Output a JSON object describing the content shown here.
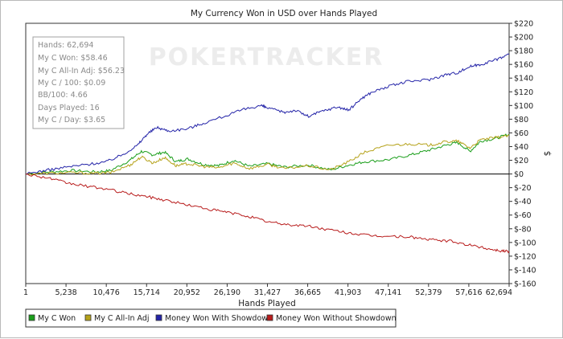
{
  "chart_data": {
    "type": "line",
    "title": "My Currency Won in USD over Hands Played",
    "xlabel": "Hands Played",
    "ylabel": "$",
    "xlim": [
      1,
      62694
    ],
    "ylim": [
      -160,
      220
    ],
    "x_ticks": [
      "1",
      "5,238",
      "10,476",
      "15,714",
      "20,952",
      "26,190",
      "31,427",
      "36,665",
      "41,903",
      "47,141",
      "52,379",
      "57,616",
      "62,694"
    ],
    "y_ticks": [
      220,
      200,
      180,
      160,
      140,
      120,
      100,
      80,
      60,
      40,
      20,
      0,
      -20,
      -40,
      -60,
      -80,
      -100,
      -120,
      -140,
      -160
    ],
    "y_tick_labels": [
      "$220",
      "$200",
      "$180",
      "$160",
      "$140",
      "$120",
      "$100",
      "$80",
      "$60",
      "$40",
      "$20",
      "$0",
      "$-20",
      "$-40",
      "$-60",
      "$-80",
      "$-100",
      "$-120",
      "$-140",
      "$-160"
    ],
    "grid": false,
    "legend_position": "bottom",
    "series": [
      {
        "name": "My C Won",
        "color": "#1a9e1a",
        "points": [
          [
            1,
            0
          ],
          [
            3000,
            3
          ],
          [
            6000,
            5
          ],
          [
            9000,
            3
          ],
          [
            11000,
            5
          ],
          [
            13500,
            20
          ],
          [
            15000,
            33
          ],
          [
            16500,
            28
          ],
          [
            18000,
            32
          ],
          [
            19500,
            18
          ],
          [
            21000,
            22
          ],
          [
            23000,
            14
          ],
          [
            25000,
            12
          ],
          [
            27000,
            20
          ],
          [
            29000,
            11
          ],
          [
            31427,
            15
          ],
          [
            33500,
            10
          ],
          [
            36665,
            13
          ],
          [
            39500,
            6
          ],
          [
            41903,
            13
          ],
          [
            44000,
            18
          ],
          [
            47141,
            21
          ],
          [
            50000,
            28
          ],
          [
            52379,
            35
          ],
          [
            54500,
            42
          ],
          [
            56000,
            46
          ],
          [
            57616,
            33
          ],
          [
            59000,
            48
          ],
          [
            61000,
            52
          ],
          [
            62694,
            58
          ]
        ]
      },
      {
        "name": "My C All-In Adj",
        "color": "#b5a21a",
        "points": [
          [
            1,
            0
          ],
          [
            3000,
            1
          ],
          [
            6000,
            2
          ],
          [
            9000,
            1
          ],
          [
            11000,
            2
          ],
          [
            13500,
            13
          ],
          [
            15000,
            25
          ],
          [
            16500,
            16
          ],
          [
            18000,
            24
          ],
          [
            19500,
            12
          ],
          [
            21000,
            15
          ],
          [
            23000,
            11
          ],
          [
            25000,
            9
          ],
          [
            27000,
            16
          ],
          [
            29000,
            8
          ],
          [
            31427,
            14
          ],
          [
            33500,
            8
          ],
          [
            36665,
            12
          ],
          [
            39500,
            6
          ],
          [
            41903,
            18
          ],
          [
            44000,
            32
          ],
          [
            47141,
            42
          ],
          [
            50000,
            44
          ],
          [
            52379,
            42
          ],
          [
            54500,
            47
          ],
          [
            56000,
            48
          ],
          [
            57616,
            38
          ],
          [
            59000,
            50
          ],
          [
            61000,
            53
          ],
          [
            62694,
            56
          ]
        ]
      },
      {
        "name": "Money Won With Showdown",
        "color": "#2424a8",
        "points": [
          [
            1,
            0
          ],
          [
            2500,
            5
          ],
          [
            5238,
            10
          ],
          [
            8000,
            14
          ],
          [
            10476,
            18
          ],
          [
            12500,
            28
          ],
          [
            14500,
            42
          ],
          [
            15714,
            58
          ],
          [
            17000,
            68
          ],
          [
            18500,
            63
          ],
          [
            20952,
            66
          ],
          [
            23000,
            74
          ],
          [
            26190,
            86
          ],
          [
            28500,
            95
          ],
          [
            30500,
            100
          ],
          [
            31427,
            96
          ],
          [
            33500,
            90
          ],
          [
            35000,
            93
          ],
          [
            36665,
            84
          ],
          [
            38500,
            92
          ],
          [
            40500,
            98
          ],
          [
            41903,
            93
          ],
          [
            43500,
            110
          ],
          [
            45000,
            120
          ],
          [
            47141,
            128
          ],
          [
            49500,
            135
          ],
          [
            52379,
            138
          ],
          [
            54500,
            145
          ],
          [
            56000,
            148
          ],
          [
            57616,
            157
          ],
          [
            59000,
            160
          ],
          [
            61000,
            167
          ],
          [
            62694,
            175
          ]
        ]
      },
      {
        "name": "Money Won Without Showdown",
        "color": "#b81c1c",
        "points": [
          [
            1,
            0
          ],
          [
            3000,
            -6
          ],
          [
            5238,
            -13
          ],
          [
            8000,
            -18
          ],
          [
            10476,
            -22
          ],
          [
            13000,
            -28
          ],
          [
            15714,
            -33
          ],
          [
            18000,
            -38
          ],
          [
            20952,
            -45
          ],
          [
            24000,
            -52
          ],
          [
            26190,
            -56
          ],
          [
            29000,
            -62
          ],
          [
            31427,
            -70
          ],
          [
            34000,
            -74
          ],
          [
            36665,
            -76
          ],
          [
            39000,
            -81
          ],
          [
            41903,
            -86
          ],
          [
            44500,
            -90
          ],
          [
            47141,
            -91
          ],
          [
            50000,
            -92
          ],
          [
            52379,
            -96
          ],
          [
            55000,
            -98
          ],
          [
            57616,
            -104
          ],
          [
            60000,
            -109
          ],
          [
            61500,
            -112
          ],
          [
            62694,
            -113
          ]
        ]
      }
    ]
  },
  "stats": {
    "hands": "Hands: 62,694",
    "won": "My C Won: $58.46",
    "allin_adj": "My C All-In Adj: $56.23",
    "per100": "My C / 100: $0.09",
    "bb100": "BB/100: 4.66",
    "days": "Days Played: 16",
    "per_day": "My C / Day: $3.65"
  },
  "watermark": "POKERTRACKER"
}
